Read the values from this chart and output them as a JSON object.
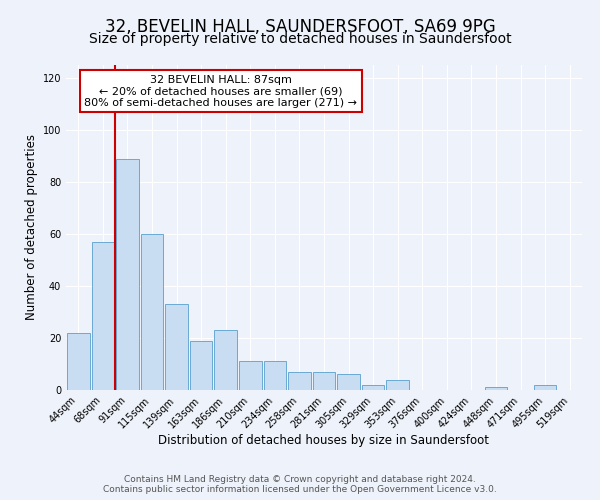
{
  "title": "32, BEVELIN HALL, SAUNDERSFOOT, SA69 9PG",
  "subtitle": "Size of property relative to detached houses in Saundersfoot",
  "xlabel": "Distribution of detached houses by size in Saundersfoot",
  "ylabel": "Number of detached properties",
  "bar_labels": [
    "44sqm",
    "68sqm",
    "91sqm",
    "115sqm",
    "139sqm",
    "163sqm",
    "186sqm",
    "210sqm",
    "234sqm",
    "258sqm",
    "281sqm",
    "305sqm",
    "329sqm",
    "353sqm",
    "376sqm",
    "400sqm",
    "424sqm",
    "448sqm",
    "471sqm",
    "495sqm",
    "519sqm"
  ],
  "bar_values": [
    22,
    57,
    89,
    60,
    33,
    19,
    23,
    11,
    11,
    7,
    7,
    6,
    2,
    4,
    0,
    0,
    0,
    1,
    0,
    2,
    0
  ],
  "bar_color": "#c9ddf2",
  "bar_edgecolor": "#6aaad4",
  "vline_x_index": 2,
  "vline_color": "#cc0000",
  "annotation_title": "32 BEVELIN HALL: 87sqm",
  "annotation_line1": "← 20% of detached houses are smaller (69)",
  "annotation_line2": "80% of semi-detached houses are larger (271) →",
  "annotation_box_facecolor": "white",
  "annotation_box_edgecolor": "#cc0000",
  "ylim": [
    0,
    125
  ],
  "yticks": [
    0,
    20,
    40,
    60,
    80,
    100,
    120
  ],
  "footer1": "Contains HM Land Registry data © Crown copyright and database right 2024.",
  "footer2": "Contains public sector information licensed under the Open Government Licence v3.0.",
  "bg_color": "#eef2fa",
  "plot_bg_color": "#eef2fa",
  "grid_color": "#ffffff",
  "title_fontsize": 12,
  "subtitle_fontsize": 10,
  "axis_label_fontsize": 8.5,
  "tick_fontsize": 7,
  "annotation_fontsize": 8,
  "footer_fontsize": 6.5
}
